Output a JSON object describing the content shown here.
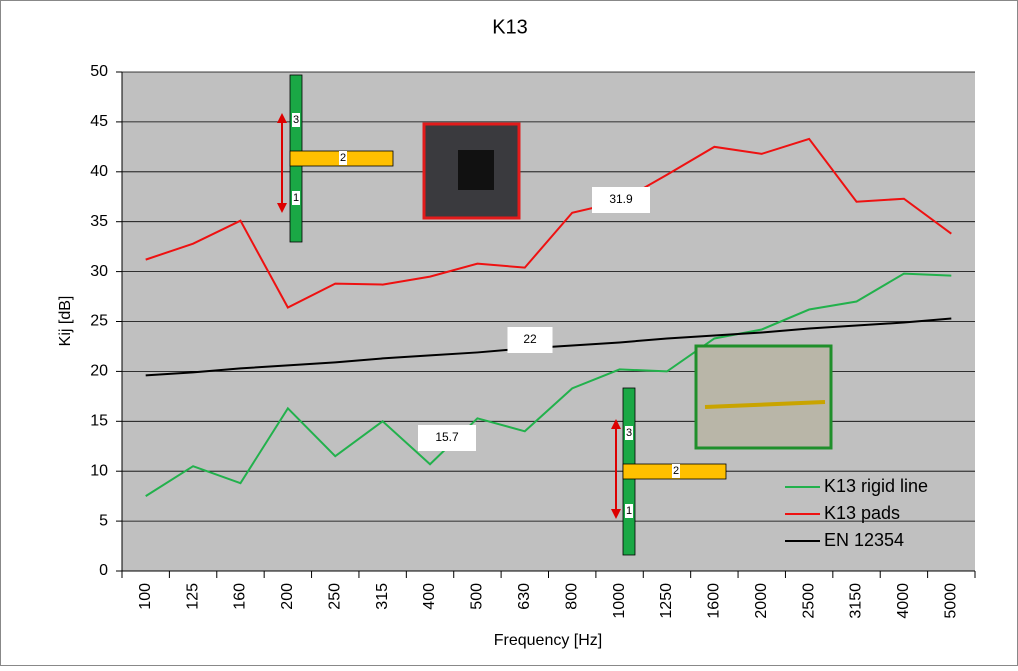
{
  "chart_data": {
    "type": "line",
    "title": "K13",
    "xlabel": "Frequency [Hz]",
    "ylabel": "Kij [dB]",
    "categories": [
      "100",
      "125",
      "160",
      "200",
      "250",
      "315",
      "400",
      "500",
      "630",
      "800",
      "1000",
      "1250",
      "1600",
      "2000",
      "2500",
      "3150",
      "4000",
      "5000"
    ],
    "series": [
      {
        "name": "K13 rigid line",
        "color": "#22b14c",
        "values": [
          7.5,
          10.5,
          8.8,
          16.3,
          11.5,
          15.0,
          10.7,
          15.3,
          14.0,
          18.3,
          20.2,
          20.0,
          23.3,
          24.2,
          26.2,
          27.0,
          29.8,
          29.6
        ]
      },
      {
        "name": "K13 pads",
        "color": "#ee1111",
        "values": [
          31.2,
          32.8,
          35.1,
          26.4,
          28.8,
          28.7,
          29.5,
          30.8,
          30.4,
          35.9,
          37.0,
          39.7,
          42.5,
          41.8,
          43.3,
          37.0,
          37.3,
          33.8
        ]
      },
      {
        "name": "EN 12354",
        "color": "#000000",
        "values": [
          19.6,
          19.9,
          20.3,
          20.6,
          20.9,
          21.3,
          21.6,
          21.9,
          22.3,
          22.6,
          22.9,
          23.3,
          23.6,
          23.9,
          24.3,
          24.6,
          24.9,
          25.3
        ]
      }
    ],
    "ylim": [
      0,
      50
    ],
    "yticks": [
      0,
      5,
      10,
      15,
      20,
      25,
      30,
      35,
      40,
      45,
      50
    ],
    "grid": true,
    "legend": "lower right",
    "annotations": [
      "31.9",
      "22",
      "15.7"
    ],
    "junction_labels": [
      "3",
      "2",
      "1"
    ]
  }
}
